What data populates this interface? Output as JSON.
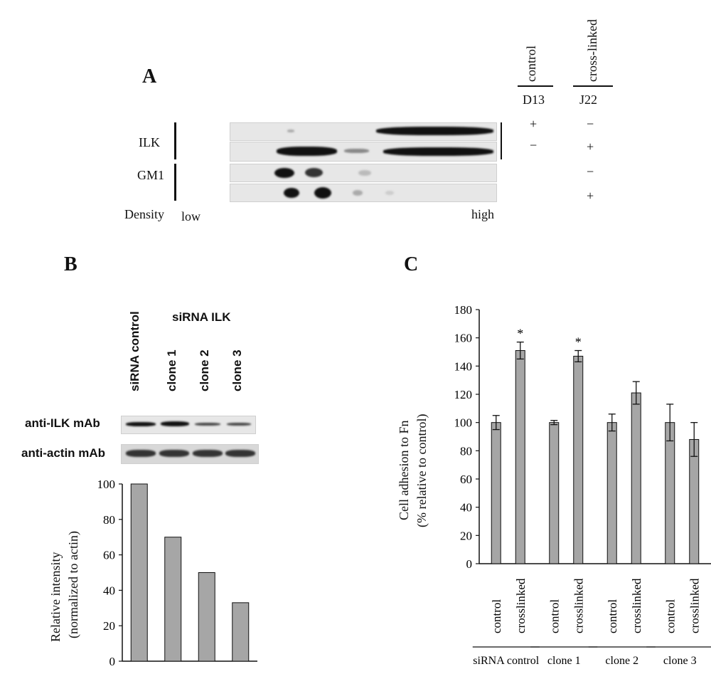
{
  "panel_a": {
    "letter": "A",
    "col_headers": [
      "control",
      "cross-linked"
    ],
    "col_ids": [
      "D13",
      "J22"
    ],
    "row_labels": [
      "ILK",
      "GM1"
    ],
    "signs_d13": [
      "+",
      "−"
    ],
    "signs_j22": [
      "−",
      "+",
      "−",
      "+"
    ],
    "density_label": "Density",
    "low_label": "low",
    "high_label": "high"
  },
  "panel_b": {
    "letter": "B",
    "lane_labels": [
      "siRNA control",
      "clone 1",
      "clone 2",
      "clone 3"
    ],
    "group_label": "siRNA ILK",
    "blot_labels": [
      "anti-ILK mAb",
      "anti-actin mAb"
    ],
    "ylabel_line1": "Relative intensity",
    "ylabel_line2": "(normalized to actin)"
  },
  "panel_c": {
    "letter": "C",
    "ylabel_line1": "Cell adhesion to Fn",
    "ylabel_line2": "(% relative to control)",
    "significance_marker": "*"
  },
  "chart_data": [
    {
      "type": "bar",
      "categories": [
        "siRNA control",
        "clone 1",
        "clone 2",
        "clone 3"
      ],
      "values": [
        100,
        70,
        50,
        33
      ],
      "xlabel": "",
      "ylabel": "Relative intensity (normalized to actin)",
      "ylim": [
        0,
        100
      ],
      "yticks": [
        0,
        20,
        40,
        60,
        80,
        100
      ],
      "grid": false
    },
    {
      "type": "bar",
      "groups": [
        "siRNA control",
        "clone 1",
        "clone 2",
        "clone 3"
      ],
      "categories": [
        "control",
        "crosslinked"
      ],
      "values": [
        [
          100,
          151
        ],
        [
          100,
          147
        ],
        [
          100,
          121
        ],
        [
          100,
          88
        ]
      ],
      "errors": [
        [
          5,
          6
        ],
        [
          1.5,
          4
        ],
        [
          6,
          8
        ],
        [
          13,
          12
        ]
      ],
      "significant": [
        [
          false,
          true
        ],
        [
          false,
          true
        ],
        [
          false,
          false
        ],
        [
          false,
          false
        ]
      ],
      "xlabel": "",
      "ylabel": "Cell adhesion to Fn (% relative to control)",
      "ylim": [
        0,
        180
      ],
      "yticks": [
        0,
        20,
        40,
        60,
        80,
        100,
        120,
        140,
        160,
        180
      ],
      "grid": false
    }
  ]
}
